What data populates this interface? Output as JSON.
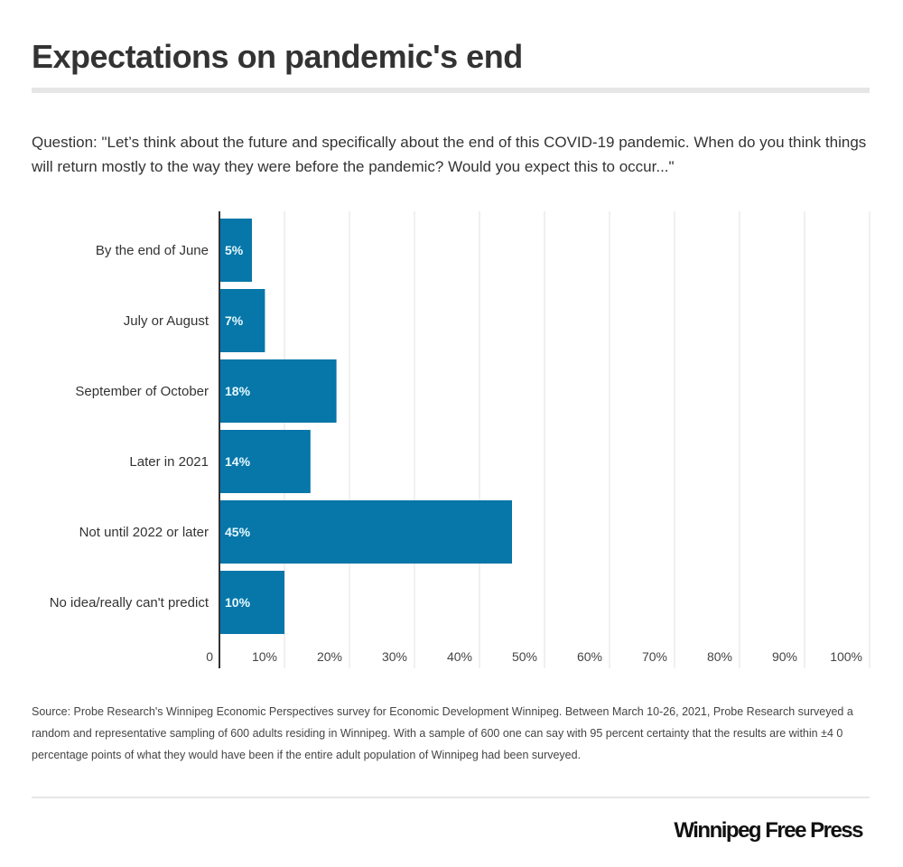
{
  "header": {
    "title": "Expectations on pandemic's end",
    "question": "Question: \"Let’s think about the future and specifically about the end of this COVID-19 pandemic. When do you think things will return mostly to the way they were before the pandemic? Would you expect this to occur...\""
  },
  "chart_data": {
    "type": "bar",
    "orientation": "horizontal",
    "categories": [
      "By the end of June",
      "July or August",
      "September of October",
      "Later in 2021",
      "Not until 2022 or later",
      "No idea/really can't predict"
    ],
    "values": [
      5,
      7,
      18,
      14,
      45,
      10
    ],
    "data_labels": [
      "5%",
      "7%",
      "18%",
      "14%",
      "45%",
      "10%"
    ],
    "xlim": [
      0,
      100
    ],
    "xticks": [
      0,
      10,
      20,
      30,
      40,
      50,
      60,
      70,
      80,
      90,
      100
    ],
    "xtick_labels": [
      "0",
      "10%",
      "20%",
      "30%",
      "40%",
      "50%",
      "60%",
      "70%",
      "80%",
      "90%",
      "100%"
    ],
    "grid": true,
    "bar_color": "#0776a8",
    "label_color": "#e6faff"
  },
  "footer": {
    "source": "Source: Probe Research's Winnipeg Economic Perspectives survey for Economic Development Winnipeg. Between March 10-26, 2021, Probe Research surveyed a random and representative sampling of 600 adults residing in Winnipeg. With a sample of 600 one can say with 95 percent certainty that the results are within ±4 0 percentage points of what they would have been if the entire adult population of Winnipeg had been surveyed.",
    "logo": "Winnipeg Free Press"
  }
}
